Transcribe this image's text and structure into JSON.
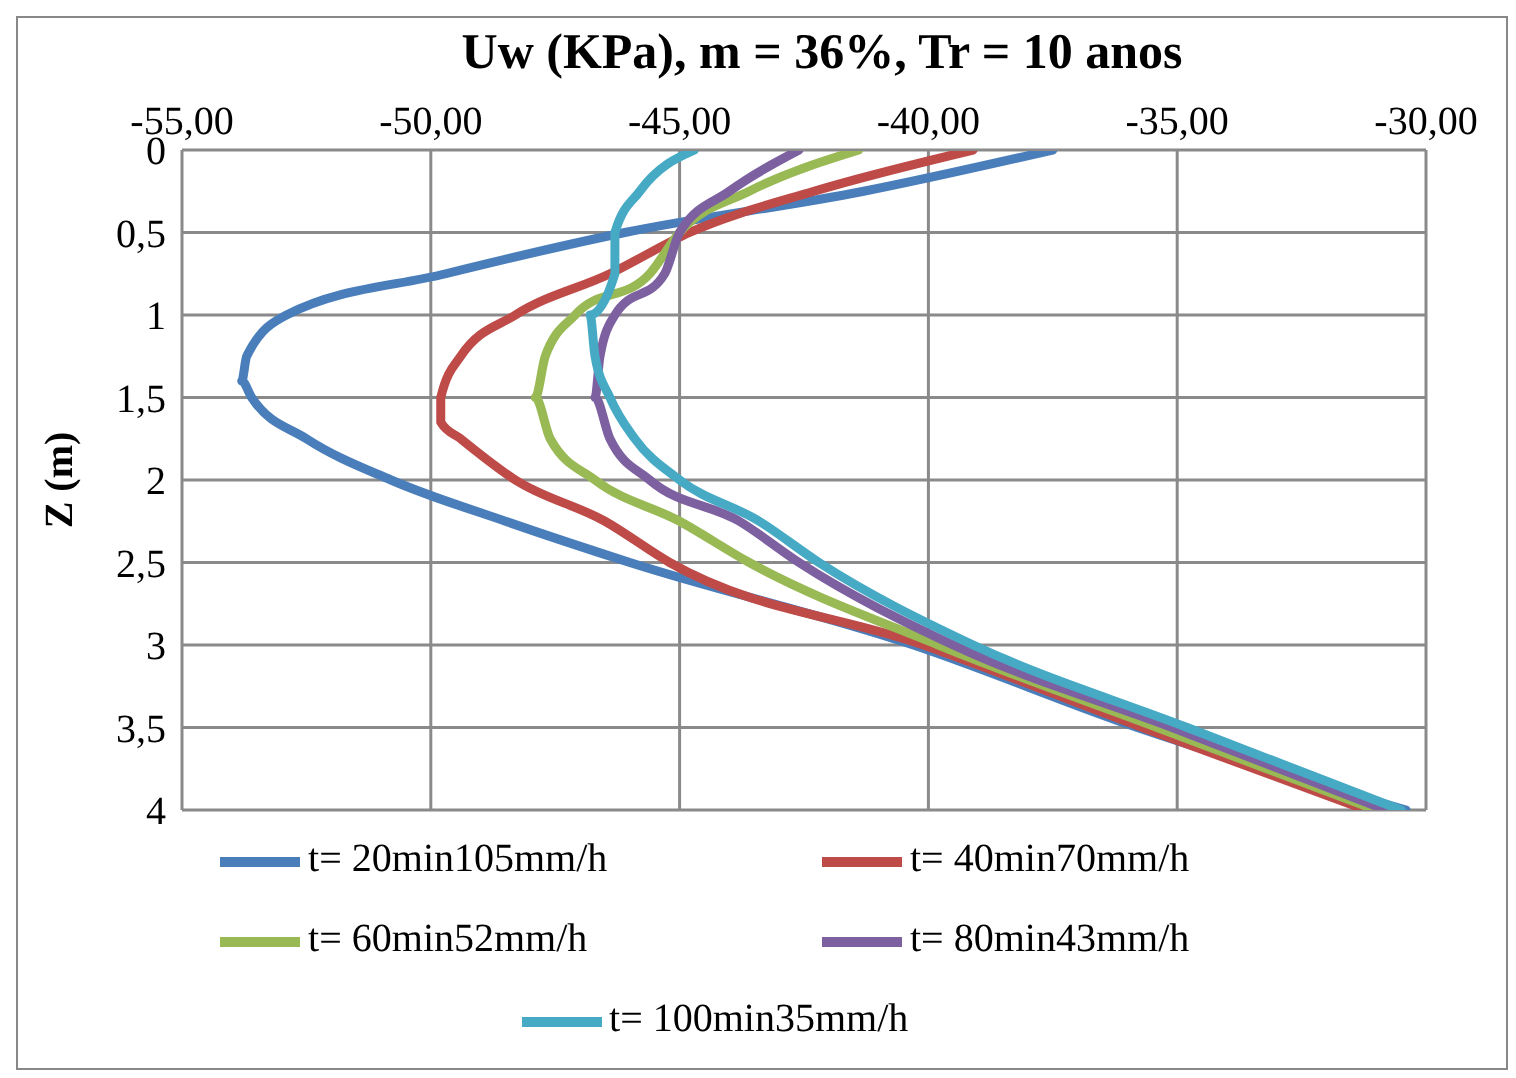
{
  "chart_data": {
    "type": "line",
    "title": "Uw (KPa), m = 36%, Tr = 10 anos",
    "ylabel": "Z (m)",
    "xlim": [
      -55,
      -30
    ],
    "xticks": [
      {
        "value": -55,
        "label": "-55,00"
      },
      {
        "value": -50,
        "label": "-50,00"
      },
      {
        "value": -45,
        "label": "-45,00"
      },
      {
        "value": -40,
        "label": "-40,00"
      },
      {
        "value": -35,
        "label": "-35,00"
      },
      {
        "value": -30,
        "label": "-30,00"
      }
    ],
    "ylim": [
      4,
      0
    ],
    "yticks": [
      0,
      {
        "value": 0.5,
        "label": "0,5"
      },
      1,
      {
        "value": 1.5,
        "label": "1,5"
      },
      2,
      {
        "value": 2.5,
        "label": "2,5"
      },
      3,
      {
        "value": 3.5,
        "label": "3,5"
      },
      4
    ],
    "grid": true,
    "legend": "bottom",
    "marker": "none",
    "line_style": "solid",
    "series": [
      {
        "name": "t= 20min105mm/h",
        "color": "#4a7ebb",
        "x": [
          -37.5,
          -41.3,
          -46.1,
          -49.7,
          -52.9,
          -53.7,
          -53.8,
          -53.6,
          -52.5,
          -50.8,
          -48.5,
          -46.0,
          -40.3,
          -35.8,
          -30.4
        ],
        "values": [
          0,
          0.25,
          0.5,
          0.75,
          1,
          1.25,
          1.4,
          1.5,
          1.75,
          2,
          2.25,
          2.5,
          3,
          3.5,
          4
        ]
      },
      {
        "name": "t= 40min70mm/h",
        "color": "#be4b48",
        "x": [
          -39.1,
          -42.3,
          -44.8,
          -46.4,
          -48.3,
          -49.4,
          -49.8,
          -49.8,
          -49.4,
          -48.3,
          -46.5,
          -45.2,
          -40.1,
          -35.7,
          -31.2
        ],
        "values": [
          0,
          0.25,
          0.5,
          0.75,
          1,
          1.25,
          1.5,
          1.65,
          1.75,
          2,
          2.25,
          2.5,
          3,
          3.5,
          4
        ]
      },
      {
        "name": "t= 60min52mm/h",
        "color": "#98b954",
        "x": [
          -41.4,
          -43.6,
          -45.0,
          -45.6,
          -47.1,
          -47.7,
          -47.9,
          -47.6,
          -46.7,
          -45.0,
          -43.6,
          -39.8,
          -35.4,
          -31.0
        ],
        "values": [
          0,
          0.25,
          0.5,
          0.75,
          1,
          1.25,
          1.5,
          1.75,
          2,
          2.25,
          2.5,
          3,
          3.5,
          4
        ]
      },
      {
        "name": "t= 80min43mm/h",
        "color": "#7d60a0",
        "x": [
          -42.6,
          -44.0,
          -45.0,
          -45.3,
          -46.3,
          -46.6,
          -46.7,
          -46.4,
          -45.6,
          -43.8,
          -42.6,
          -39.5,
          -35.1,
          -30.8
        ],
        "values": [
          0,
          0.25,
          0.5,
          0.75,
          1,
          1.25,
          1.5,
          1.75,
          2,
          2.25,
          2.5,
          3,
          3.5,
          4
        ]
      },
      {
        "name": "t= 100min35mm/h",
        "color": "#46aac5",
        "x": [
          -44.7,
          -45.8,
          -46.3,
          -46.3,
          -46.3,
          -46.8,
          -46.7,
          -46.4,
          -45.9,
          -45.0,
          -43.4,
          -42.2,
          -39.1,
          -34.8,
          -30.5
        ],
        "values": [
          0,
          0.25,
          0.5,
          0.6,
          0.75,
          1,
          1.25,
          1.5,
          1.75,
          2,
          2.25,
          2.5,
          3,
          3.5,
          4
        ]
      }
    ]
  }
}
